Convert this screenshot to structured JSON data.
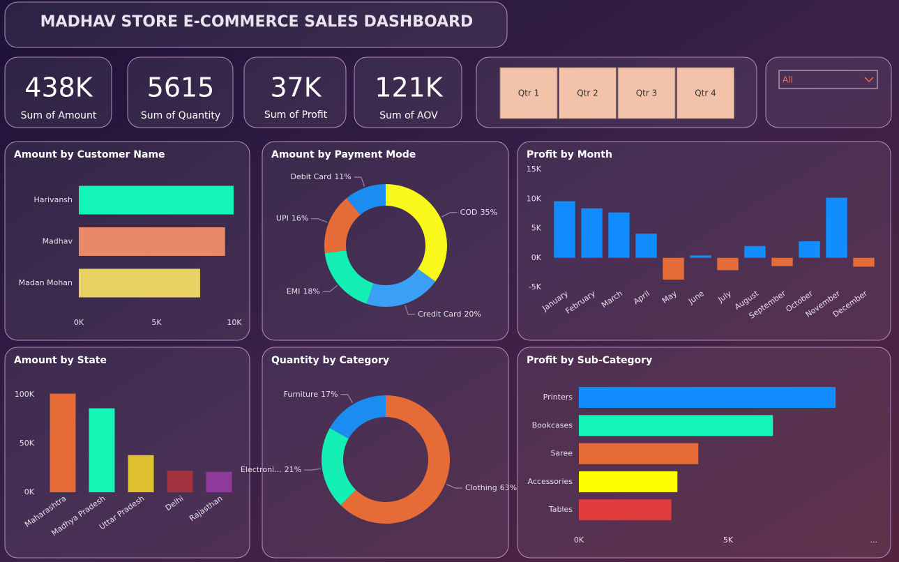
{
  "header": {
    "title": "MADHAV STORE E-COMMERCE SALES DASHBOARD"
  },
  "kpis": [
    {
      "value": "438K",
      "label": "Sum of Amount"
    },
    {
      "value": "5615",
      "label": "Sum of Quantity"
    },
    {
      "value": "37K",
      "label": "Sum of Profit"
    },
    {
      "value": "121K",
      "label": "Sum of AOV"
    }
  ],
  "quarter_slicer": {
    "options": [
      "Qtr 1",
      "Qtr 2",
      "Qtr 3",
      "Qtr 4"
    ]
  },
  "dropdown": {
    "selected": "All"
  },
  "chart_data": [
    {
      "type": "hbar",
      "title": "Amount by Customer Name",
      "categories": [
        "Harivansh",
        "Madhav",
        "Madan Mohan"
      ],
      "values": [
        9950,
        9400,
        7800
      ],
      "colors": [
        "#12f5b6",
        "#e8896a",
        "#e8d264"
      ],
      "xlim": [
        0,
        10000
      ],
      "xticks": [
        {
          "value": 0,
          "label": "0K"
        },
        {
          "value": 5000,
          "label": "5K"
        },
        {
          "value": 10000,
          "label": "10K"
        }
      ]
    },
    {
      "type": "donut",
      "title": "Amount by Payment Mode",
      "categories": [
        "COD",
        "Credit Card",
        "EMI",
        "UPI",
        "Debit Card"
      ],
      "values": [
        35,
        20,
        18,
        16,
        11
      ],
      "value_labels": [
        "35%",
        "20%",
        "18%",
        "16%",
        "11%"
      ],
      "colors": [
        "#f8f81a",
        "#3b9ff5",
        "#14f0b4",
        "#e66c37",
        "#1b8cf0"
      ]
    },
    {
      "type": "bar",
      "title": "Profit by Month",
      "categories": [
        "January",
        "February",
        "March",
        "April",
        "May",
        "June",
        "July",
        "August",
        "September",
        "October",
        "November",
        "December"
      ],
      "values": [
        9600,
        8400,
        7700,
        4100,
        -3700,
        400,
        -2100,
        2000,
        -1400,
        2800,
        10200,
        -1500
      ],
      "color": "#118dff",
      "negative_color": "#e66c37",
      "ylim": [
        -5000,
        15000
      ],
      "yticks": [
        {
          "value": -5000,
          "label": "-5K"
        },
        {
          "value": 0,
          "label": "0K"
        },
        {
          "value": 5000,
          "label": "5K"
        },
        {
          "value": 10000,
          "label": "10K"
        },
        {
          "value": 15000,
          "label": "15K"
        }
      ]
    },
    {
      "type": "bar",
      "title": "Amount by State",
      "categories": [
        "Maharashtra",
        "Madhya Pradesh",
        "Uttar Pradesh",
        "Delhi",
        "Rajasthan"
      ],
      "values": [
        101000,
        86000,
        38000,
        22000,
        21000
      ],
      "colors": [
        "#e66c37",
        "#14f5b6",
        "#e0c230",
        "#a3323e",
        "#8d3a9a"
      ],
      "ylim": [
        0,
        105000
      ],
      "yticks": [
        {
          "value": 0,
          "label": "0K"
        },
        {
          "value": 50000,
          "label": "50K"
        },
        {
          "value": 100000,
          "label": "100K"
        }
      ]
    },
    {
      "type": "donut",
      "title": "Quantity by Category",
      "categories": [
        "Clothing",
        "Electroni...",
        "Furniture"
      ],
      "values": [
        63,
        21,
        17
      ],
      "value_labels": [
        "63%",
        "21%",
        "17%"
      ],
      "colors": [
        "#e66c37",
        "#14f0b4",
        "#1b8cf0"
      ]
    },
    {
      "type": "hbar",
      "title": "Profit by Sub-Category",
      "categories": [
        "Printers",
        "Bookcases",
        "Saree",
        "Accessories",
        "Tables"
      ],
      "values": [
        8600,
        6500,
        4000,
        3300,
        3100
      ],
      "colors": [
        "#118dff",
        "#12f5b6",
        "#e66c37",
        "#ffff00",
        "#e03c3c"
      ],
      "xlim": [
        0,
        10000
      ],
      "xticks": [
        {
          "value": 0,
          "label": "0K"
        },
        {
          "value": 5000,
          "label": "5K"
        }
      ],
      "overflow_label": "..."
    }
  ]
}
